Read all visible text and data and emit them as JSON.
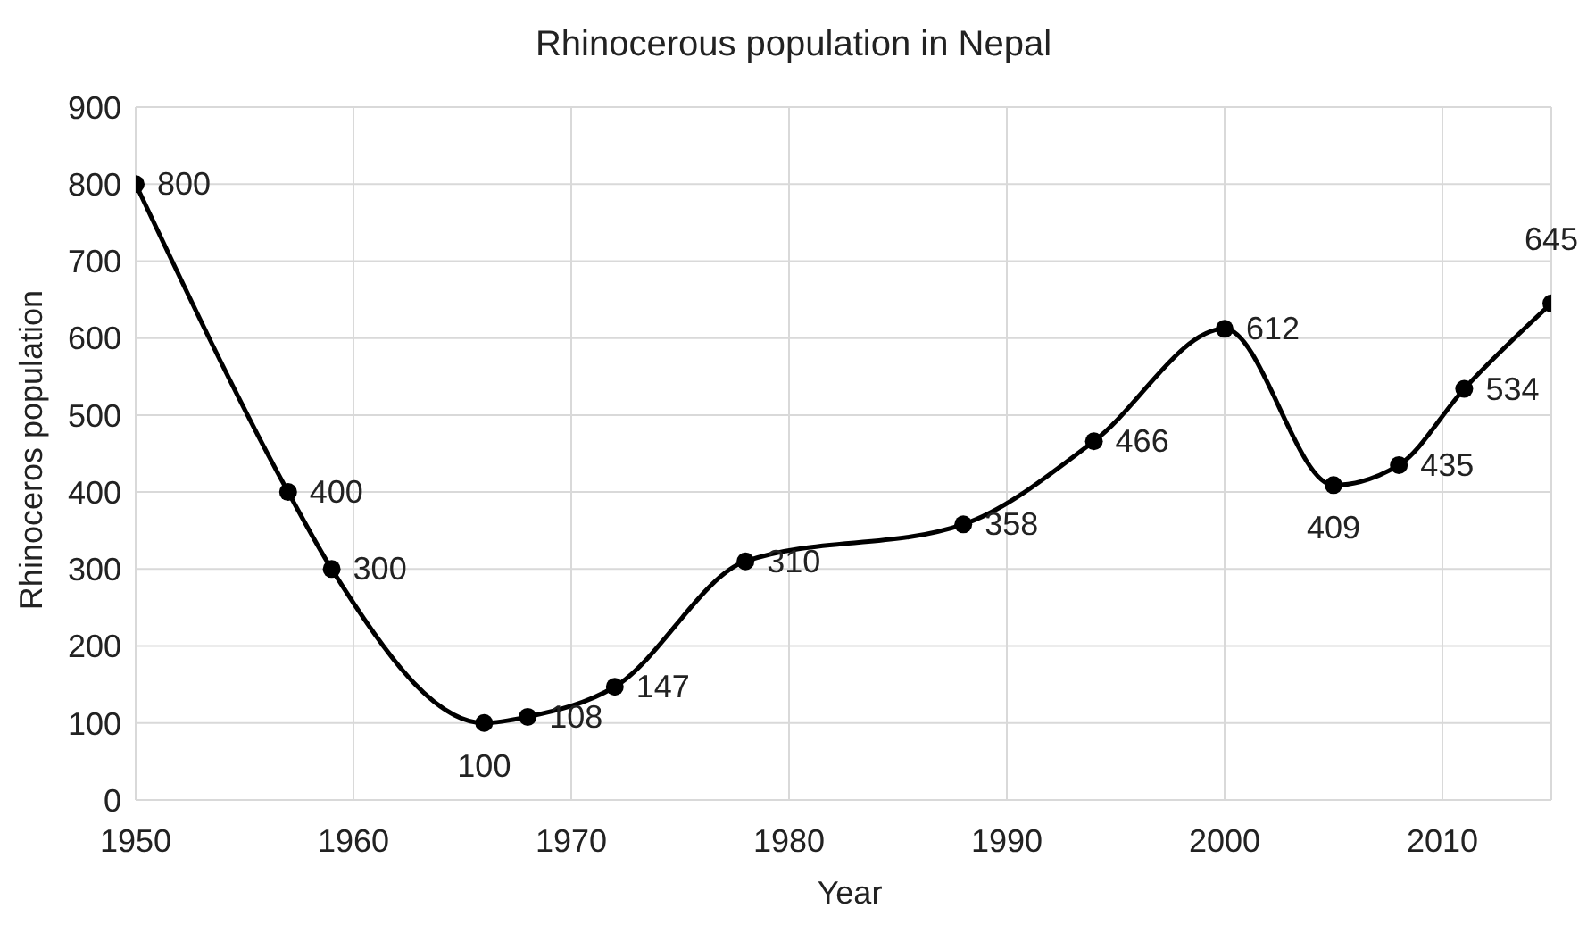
{
  "chart_data": {
    "type": "line",
    "title": "Rhinocerous population in Nepal",
    "xlabel": "Year",
    "ylabel": "Rhinoceros population",
    "x": [
      1950,
      1957,
      1959,
      1966,
      1968,
      1972,
      1978,
      1988,
      1994,
      2000,
      2005,
      2008,
      2011,
      2015
    ],
    "series": [
      {
        "color": "#000000",
        "values": [
          800,
          400,
          300,
          100,
          108,
          147,
          310,
          358,
          466,
          612,
          409,
          435,
          534,
          645
        ]
      }
    ],
    "xlim": [
      1950,
      2015
    ],
    "xticks": [
      1950,
      1960,
      1970,
      1980,
      1990,
      2000,
      2010
    ],
    "ylim": [
      0,
      900
    ],
    "yticks": [
      0,
      100,
      200,
      300,
      400,
      500,
      600,
      700,
      800,
      900
    ],
    "grid": true,
    "marker": "circle",
    "line_style": "solid",
    "data_labels": true,
    "legend": false
  }
}
